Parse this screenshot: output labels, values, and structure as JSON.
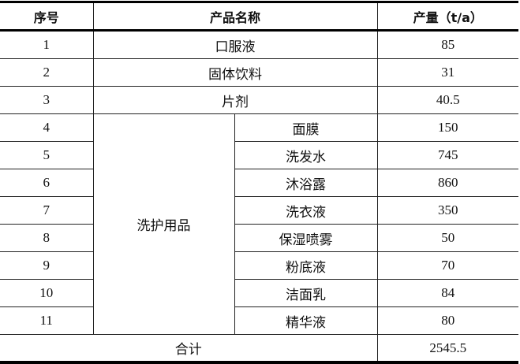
{
  "headers": [
    "序号",
    "产品名称",
    "产量（t/a）"
  ],
  "rows": [
    {
      "no": "1",
      "name": "口服液",
      "value": "85"
    },
    {
      "no": "2",
      "name": "固体饮料",
      "value": "31"
    },
    {
      "no": "3",
      "name": "片剂",
      "value": "40.5"
    }
  ],
  "group": {
    "name": "洗护用品",
    "rows": [
      {
        "no": "4",
        "name": "面膜",
        "value": "150"
      },
      {
        "no": "5",
        "name": "洗发水",
        "value": "745"
      },
      {
        "no": "6",
        "name": "沐浴露",
        "value": "860"
      },
      {
        "no": "7",
        "name": "洗衣液",
        "value": "350"
      },
      {
        "no": "8",
        "name": "保湿喷雾",
        "value": "50"
      },
      {
        "no": "9",
        "name": "粉底液",
        "value": "70"
      },
      {
        "no": "10",
        "name": "洁面乳",
        "value": "84"
      },
      {
        "no": "11",
        "name": "精华液",
        "value": "80"
      }
    ]
  },
  "total": {
    "label": "合计",
    "value": "2545.5"
  }
}
